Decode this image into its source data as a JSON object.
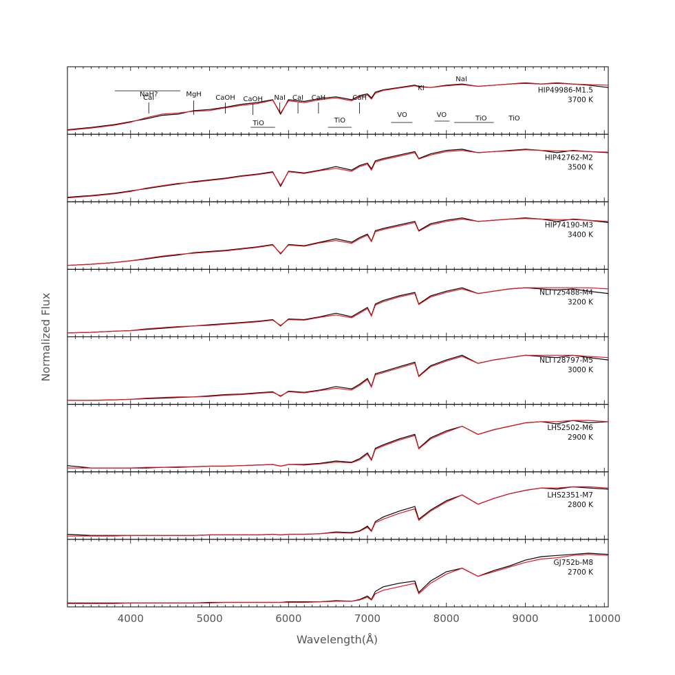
{
  "chart_data": {
    "type": "line",
    "xlabel": "Wavelength(Å)",
    "ylabel": "Normalized Flux",
    "xlim": [
      3200,
      10050
    ],
    "xticks": [
      4000,
      5000,
      6000,
      7000,
      8000,
      9000,
      10000
    ],
    "colors": {
      "observed": "#000000",
      "model": "#e8141e"
    },
    "panels": [
      {
        "label": "HIP49986-M1.5",
        "teff": "3700 K",
        "x": [
          3200,
          3500,
          3800,
          4000,
          4200,
          4400,
          4600,
          4800,
          5000,
          5200,
          5400,
          5600,
          5800,
          5900,
          6000,
          6200,
          6400,
          6600,
          6800,
          6900,
          7000,
          7050,
          7100,
          7200,
          7400,
          7600,
          7650,
          7800,
          8000,
          8200,
          8400,
          8600,
          8800,
          9000,
          9200,
          9400,
          9600,
          9800,
          10050
        ],
        "observed": [
          0.03,
          0.07,
          0.12,
          0.17,
          0.22,
          0.28,
          0.3,
          0.36,
          0.38,
          0.42,
          0.47,
          0.5,
          0.55,
          0.3,
          0.55,
          0.52,
          0.57,
          0.6,
          0.55,
          0.62,
          0.65,
          0.58,
          0.68,
          0.72,
          0.76,
          0.8,
          0.78,
          0.76,
          0.8,
          0.82,
          0.78,
          0.8,
          0.82,
          0.84,
          0.82,
          0.84,
          0.82,
          0.8,
          0.76
        ],
        "model": [
          0.02,
          0.06,
          0.11,
          0.16,
          0.24,
          0.3,
          0.32,
          0.35,
          0.36,
          0.41,
          0.45,
          0.48,
          0.54,
          0.32,
          0.53,
          0.5,
          0.55,
          0.58,
          0.53,
          0.6,
          0.63,
          0.56,
          0.66,
          0.71,
          0.75,
          0.79,
          0.77,
          0.76,
          0.79,
          0.81,
          0.78,
          0.8,
          0.82,
          0.83,
          0.82,
          0.83,
          0.82,
          0.81,
          0.8
        ]
      },
      {
        "label": "HIP42762-M2",
        "teff": "3500 K",
        "x": [
          3200,
          3500,
          3800,
          4000,
          4200,
          4400,
          4600,
          4800,
          5000,
          5200,
          5400,
          5600,
          5800,
          5900,
          6000,
          6200,
          6400,
          6600,
          6800,
          6900,
          7000,
          7050,
          7100,
          7200,
          7400,
          7600,
          7650,
          7800,
          8000,
          8200,
          8400,
          8600,
          8800,
          9000,
          9200,
          9400,
          9600,
          9800,
          10050
        ],
        "observed": [
          0.03,
          0.06,
          0.1,
          0.14,
          0.18,
          0.22,
          0.26,
          0.3,
          0.33,
          0.36,
          0.4,
          0.43,
          0.47,
          0.22,
          0.48,
          0.45,
          0.5,
          0.56,
          0.5,
          0.58,
          0.62,
          0.52,
          0.66,
          0.7,
          0.76,
          0.82,
          0.7,
          0.78,
          0.84,
          0.86,
          0.8,
          0.82,
          0.84,
          0.86,
          0.84,
          0.8,
          0.84,
          0.82,
          0.8
        ],
        "model": [
          0.02,
          0.05,
          0.09,
          0.13,
          0.19,
          0.23,
          0.27,
          0.29,
          0.32,
          0.35,
          0.39,
          0.42,
          0.46,
          0.24,
          0.47,
          0.44,
          0.49,
          0.53,
          0.48,
          0.56,
          0.6,
          0.5,
          0.64,
          0.68,
          0.74,
          0.8,
          0.69,
          0.76,
          0.82,
          0.84,
          0.8,
          0.82,
          0.83,
          0.85,
          0.84,
          0.83,
          0.83,
          0.82,
          0.81
        ]
      },
      {
        "label": "HIP74190-M3",
        "teff": "3400 K",
        "x": [
          3200,
          3500,
          3800,
          4000,
          4200,
          4400,
          4600,
          4800,
          5000,
          5200,
          5400,
          5600,
          5800,
          5900,
          6000,
          6200,
          6400,
          6600,
          6800,
          6900,
          7000,
          7050,
          7100,
          7200,
          7400,
          7600,
          7650,
          7800,
          8000,
          8200,
          8400,
          8600,
          8800,
          9000,
          9200,
          9400,
          9600,
          9800,
          10050
        ],
        "observed": [
          0.02,
          0.04,
          0.07,
          0.1,
          0.13,
          0.17,
          0.2,
          0.24,
          0.26,
          0.28,
          0.31,
          0.34,
          0.38,
          0.22,
          0.38,
          0.36,
          0.42,
          0.48,
          0.42,
          0.5,
          0.56,
          0.44,
          0.62,
          0.66,
          0.72,
          0.78,
          0.62,
          0.74,
          0.8,
          0.84,
          0.78,
          0.8,
          0.82,
          0.84,
          0.82,
          0.78,
          0.82,
          0.8,
          0.76
        ],
        "model": [
          0.02,
          0.04,
          0.07,
          0.1,
          0.14,
          0.18,
          0.21,
          0.23,
          0.25,
          0.27,
          0.3,
          0.33,
          0.37,
          0.23,
          0.37,
          0.35,
          0.41,
          0.45,
          0.4,
          0.48,
          0.54,
          0.43,
          0.6,
          0.64,
          0.7,
          0.76,
          0.61,
          0.72,
          0.78,
          0.82,
          0.78,
          0.8,
          0.82,
          0.83,
          0.82,
          0.81,
          0.81,
          0.8,
          0.78
        ]
      },
      {
        "label": "NLTT25488-M4",
        "teff": "3200 K",
        "x": [
          3200,
          3500,
          3800,
          4000,
          4200,
          4400,
          4600,
          4800,
          5000,
          5200,
          5400,
          5600,
          5800,
          5900,
          6000,
          6200,
          6400,
          6600,
          6800,
          6900,
          7000,
          7050,
          7100,
          7200,
          7400,
          7600,
          7650,
          7800,
          8000,
          8200,
          8400,
          8600,
          8800,
          9000,
          9200,
          9400,
          9600,
          9800,
          10050
        ],
        "observed": [
          0.02,
          0.03,
          0.05,
          0.06,
          0.08,
          0.1,
          0.12,
          0.14,
          0.16,
          0.18,
          0.2,
          0.22,
          0.25,
          0.14,
          0.26,
          0.25,
          0.3,
          0.36,
          0.3,
          0.38,
          0.46,
          0.32,
          0.52,
          0.58,
          0.66,
          0.72,
          0.52,
          0.66,
          0.74,
          0.8,
          0.7,
          0.74,
          0.78,
          0.8,
          0.78,
          0.76,
          0.78,
          0.74,
          0.7
        ],
        "model": [
          0.02,
          0.03,
          0.05,
          0.06,
          0.09,
          0.11,
          0.13,
          0.14,
          0.15,
          0.17,
          0.19,
          0.21,
          0.24,
          0.15,
          0.25,
          0.24,
          0.29,
          0.33,
          0.28,
          0.36,
          0.44,
          0.31,
          0.5,
          0.56,
          0.64,
          0.7,
          0.51,
          0.64,
          0.72,
          0.78,
          0.7,
          0.74,
          0.78,
          0.8,
          0.8,
          0.8,
          0.8,
          0.8,
          0.78
        ]
      },
      {
        "label": "NLTT28797-M5",
        "teff": "3000 K",
        "x": [
          3200,
          3500,
          3800,
          4000,
          4200,
          4400,
          4600,
          4800,
          5000,
          5200,
          5400,
          5600,
          5800,
          5900,
          6000,
          6200,
          6400,
          6600,
          6800,
          6900,
          7000,
          7050,
          7100,
          7200,
          7400,
          7600,
          7650,
          7800,
          8000,
          8200,
          8400,
          8600,
          8800,
          9000,
          9200,
          9400,
          9600,
          9800,
          10050
        ],
        "observed": [
          0.02,
          0.02,
          0.03,
          0.04,
          0.05,
          0.06,
          0.07,
          0.08,
          0.1,
          0.12,
          0.13,
          0.15,
          0.17,
          0.09,
          0.18,
          0.16,
          0.2,
          0.26,
          0.22,
          0.3,
          0.4,
          0.26,
          0.48,
          0.52,
          0.6,
          0.68,
          0.44,
          0.62,
          0.72,
          0.8,
          0.66,
          0.72,
          0.76,
          0.8,
          0.78,
          0.76,
          0.8,
          0.76,
          0.72
        ],
        "model": [
          0.02,
          0.02,
          0.03,
          0.04,
          0.06,
          0.07,
          0.08,
          0.08,
          0.09,
          0.11,
          0.12,
          0.14,
          0.16,
          0.1,
          0.17,
          0.15,
          0.19,
          0.23,
          0.2,
          0.28,
          0.38,
          0.25,
          0.46,
          0.5,
          0.58,
          0.66,
          0.43,
          0.6,
          0.7,
          0.78,
          0.66,
          0.72,
          0.76,
          0.8,
          0.8,
          0.8,
          0.8,
          0.78,
          0.76
        ]
      },
      {
        "label": "LHS2502-M6",
        "teff": "2900 K",
        "x": [
          3200,
          3500,
          3800,
          4000,
          4200,
          4400,
          4600,
          4800,
          5000,
          5200,
          5400,
          5600,
          5800,
          5900,
          6000,
          6200,
          6400,
          6600,
          6800,
          6900,
          7000,
          7050,
          7100,
          7200,
          7400,
          7600,
          7650,
          7800,
          8000,
          8200,
          8400,
          8600,
          8800,
          9000,
          9200,
          9400,
          9600,
          9800,
          10050
        ],
        "observed": [
          0.06,
          0.02,
          0.02,
          0.02,
          0.02,
          0.03,
          0.03,
          0.04,
          0.05,
          0.05,
          0.06,
          0.07,
          0.08,
          0.05,
          0.08,
          0.08,
          0.1,
          0.14,
          0.12,
          0.18,
          0.28,
          0.16,
          0.36,
          0.42,
          0.52,
          0.6,
          0.36,
          0.54,
          0.66,
          0.74,
          0.6,
          0.68,
          0.74,
          0.8,
          0.82,
          0.78,
          0.84,
          0.8,
          0.82
        ],
        "model": [
          0.02,
          0.02,
          0.02,
          0.02,
          0.03,
          0.03,
          0.04,
          0.04,
          0.05,
          0.05,
          0.06,
          0.07,
          0.08,
          0.05,
          0.08,
          0.07,
          0.09,
          0.12,
          0.11,
          0.16,
          0.26,
          0.15,
          0.34,
          0.4,
          0.5,
          0.58,
          0.35,
          0.52,
          0.64,
          0.74,
          0.6,
          0.68,
          0.74,
          0.8,
          0.82,
          0.82,
          0.84,
          0.84,
          0.82
        ]
      },
      {
        "label": "LHS2351-M7",
        "teff": "2800 K",
        "x": [
          3200,
          3500,
          3800,
          4000,
          4200,
          4400,
          4600,
          4800,
          5000,
          5200,
          5400,
          5600,
          5800,
          5900,
          6000,
          6200,
          6400,
          6600,
          6800,
          6900,
          7000,
          7050,
          7100,
          7200,
          7400,
          7600,
          7650,
          7800,
          8000,
          8200,
          8400,
          8600,
          8800,
          9000,
          9200,
          9400,
          9600,
          9800,
          10050
        ],
        "observed": [
          0.04,
          0.02,
          0.02,
          0.02,
          0.02,
          0.02,
          0.02,
          0.02,
          0.03,
          0.03,
          0.03,
          0.03,
          0.04,
          0.03,
          0.04,
          0.04,
          0.05,
          0.08,
          0.07,
          0.1,
          0.18,
          0.1,
          0.26,
          0.34,
          0.44,
          0.52,
          0.3,
          0.46,
          0.62,
          0.72,
          0.56,
          0.66,
          0.74,
          0.8,
          0.84,
          0.82,
          0.86,
          0.84,
          0.82
        ],
        "model": [
          0.01,
          0.01,
          0.01,
          0.02,
          0.02,
          0.02,
          0.02,
          0.02,
          0.03,
          0.03,
          0.03,
          0.03,
          0.04,
          0.03,
          0.04,
          0.04,
          0.05,
          0.07,
          0.06,
          0.09,
          0.16,
          0.09,
          0.24,
          0.3,
          0.4,
          0.48,
          0.28,
          0.44,
          0.6,
          0.72,
          0.56,
          0.66,
          0.74,
          0.8,
          0.84,
          0.84,
          0.86,
          0.86,
          0.84
        ]
      },
      {
        "label": "GJ752b-M8",
        "teff": "2700 K",
        "x": [
          3200,
          3500,
          3800,
          4000,
          4200,
          4400,
          4600,
          4800,
          5000,
          5200,
          5400,
          5600,
          5800,
          5900,
          6000,
          6200,
          6400,
          6600,
          6800,
          6900,
          7000,
          7050,
          7100,
          7200,
          7400,
          7600,
          7650,
          7800,
          8000,
          8200,
          8400,
          8600,
          8800,
          9000,
          9200,
          9400,
          9600,
          9800,
          10050
        ],
        "observed": [
          0.02,
          0.02,
          0.02,
          0.02,
          0.02,
          0.02,
          0.02,
          0.02,
          0.03,
          0.03,
          0.03,
          0.03,
          0.03,
          0.03,
          0.04,
          0.04,
          0.04,
          0.06,
          0.05,
          0.08,
          0.14,
          0.08,
          0.22,
          0.3,
          0.36,
          0.4,
          0.2,
          0.4,
          0.56,
          0.62,
          0.48,
          0.58,
          0.66,
          0.76,
          0.82,
          0.84,
          0.86,
          0.88,
          0.86
        ],
        "model": [
          0.01,
          0.01,
          0.01,
          0.02,
          0.02,
          0.02,
          0.02,
          0.02,
          0.02,
          0.03,
          0.03,
          0.03,
          0.03,
          0.03,
          0.03,
          0.03,
          0.04,
          0.05,
          0.05,
          0.07,
          0.12,
          0.07,
          0.18,
          0.24,
          0.3,
          0.36,
          0.18,
          0.36,
          0.52,
          0.62,
          0.48,
          0.56,
          0.64,
          0.72,
          0.78,
          0.8,
          0.84,
          0.86,
          0.84
        ]
      }
    ],
    "annotations": {
      "above": [
        {
          "text": "CaI",
          "x": 4230,
          "level": 2
        },
        {
          "text": "NaH?",
          "x": 4230,
          "level": 1
        },
        {
          "text": "MgH",
          "x": 4800,
          "level": 1
        },
        {
          "text": "CaOH",
          "x": 5200,
          "level": 2
        },
        {
          "text": "CaOH",
          "x": 5550,
          "level": 3
        },
        {
          "text": "NaI",
          "x": 5890,
          "level": 2
        },
        {
          "text": "CaI",
          "x": 6120,
          "level": 2
        },
        {
          "text": "CaH",
          "x": 6380,
          "level": 2
        },
        {
          "text": "CaH",
          "x": 6900,
          "level": 2
        },
        {
          "text": "KI",
          "x": 7680,
          "level": 0
        },
        {
          "text": "NaI",
          "x": 8190,
          "level": -1
        }
      ],
      "below": [
        {
          "text": "TiO",
          "x": 5620
        },
        {
          "text": "TiO",
          "x": 6650
        },
        {
          "text": "VO",
          "x": 7440
        },
        {
          "text": "VO",
          "x": 7940
        },
        {
          "text": "TiO",
          "x": 8440
        },
        {
          "text": "TiO",
          "x": 8860
        }
      ]
    }
  }
}
